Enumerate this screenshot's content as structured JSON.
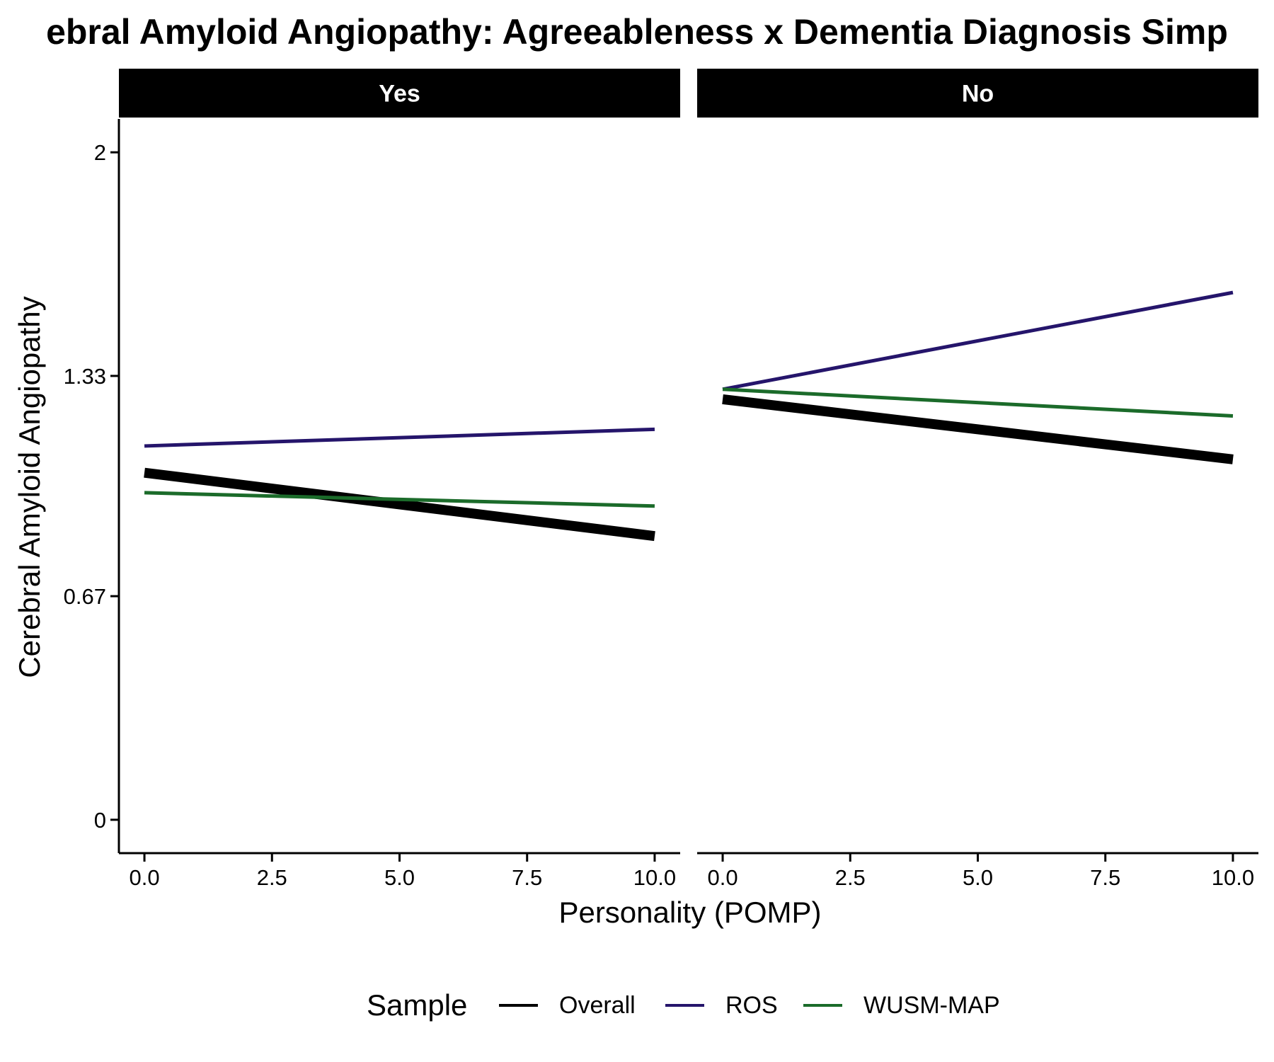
{
  "chart_data": {
    "type": "line",
    "title": "ebral Amyloid Angiopathy: Agreeableness x Dementia Diagnosis Simp",
    "xlabel": "Personality (POMP)",
    "ylabel": "Cerebral Amyloid Angiopathy",
    "xlim": [
      -0.5,
      10.5
    ],
    "ylim": [
      -0.1,
      2.1
    ],
    "x_ticks": [
      0.0,
      2.5,
      5.0,
      7.5,
      10.0
    ],
    "x_tick_labels": [
      "0.0",
      "2.5",
      "5.0",
      "7.5",
      "10.0"
    ],
    "y_ticks": [
      0,
      0.67,
      1.33,
      2
    ],
    "y_tick_labels": [
      "0",
      "0.67",
      "1.33",
      "2"
    ],
    "grid": false,
    "legend": {
      "title": "Sample",
      "position": "bottom",
      "entries": [
        "Overall",
        "ROS",
        "WUSM-MAP"
      ]
    },
    "facets": [
      {
        "label": "Yes",
        "series": [
          {
            "name": "Overall",
            "x": [
              0,
              10
            ],
            "y": [
              1.04,
              0.85
            ]
          },
          {
            "name": "ROS",
            "x": [
              0,
              10
            ],
            "y": [
              1.12,
              1.17
            ]
          },
          {
            "name": "WUSM-MAP",
            "x": [
              0,
              10
            ],
            "y": [
              0.98,
              0.94
            ]
          }
        ]
      },
      {
        "label": "No",
        "series": [
          {
            "name": "Overall",
            "x": [
              0,
              10
            ],
            "y": [
              1.26,
              1.08
            ]
          },
          {
            "name": "ROS",
            "x": [
              0,
              10
            ],
            "y": [
              1.29,
              1.58
            ]
          },
          {
            "name": "WUSM-MAP",
            "x": [
              0,
              10
            ],
            "y": [
              1.29,
              1.21
            ]
          }
        ]
      }
    ],
    "series_styles": [
      {
        "name": "Overall",
        "color": "#000000",
        "weight": "thick"
      },
      {
        "name": "ROS",
        "color": "#25156b",
        "weight": "thin"
      },
      {
        "name": "WUSM-MAP",
        "color": "#1b6b2a",
        "weight": "thin"
      }
    ]
  }
}
